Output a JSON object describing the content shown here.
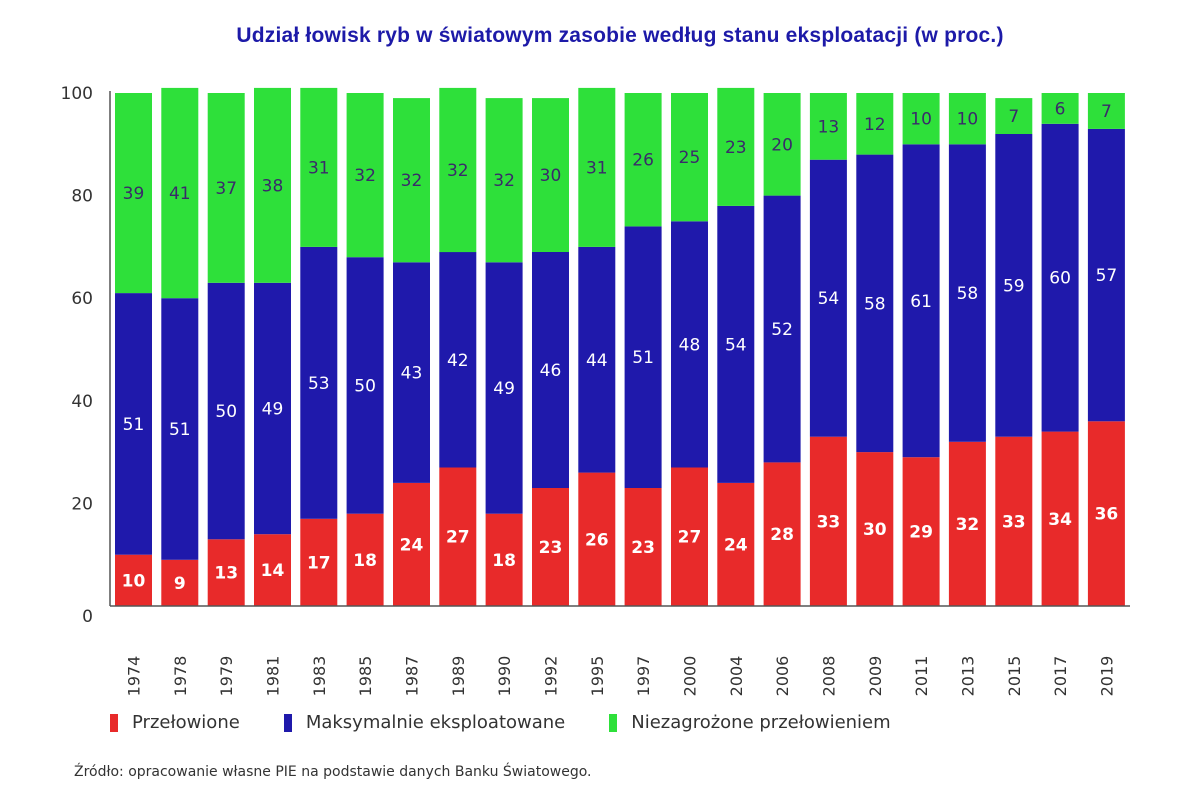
{
  "chart_data": {
    "type": "bar",
    "stacked": true,
    "title": "Udział łowisk ryb w światowym zasobie według stanu eksploatacji (w proc.)",
    "xlabel": "",
    "ylabel": "",
    "ylim": [
      0,
      100
    ],
    "yticks": [
      "0",
      "20",
      "40",
      "60",
      "80",
      "100"
    ],
    "grid": false,
    "legend_position": "bottom",
    "categories": [
      "1974",
      "1978",
      "1979",
      "1981",
      "1983",
      "1985",
      "1987",
      "1989",
      "1990",
      "1992",
      "1995",
      "1997",
      "2000",
      "2004",
      "2006",
      "2008",
      "2009",
      "2011",
      "2013",
      "2015",
      "2017",
      "2019"
    ],
    "series": [
      {
        "name": "Przełowione",
        "color": "#e82a2a",
        "label_color": "#ffffff",
        "values": [
          10,
          9,
          13,
          14,
          17,
          18,
          24,
          27,
          18,
          23,
          26,
          23,
          27,
          24,
          28,
          33,
          30,
          29,
          32,
          33,
          34,
          36
        ]
      },
      {
        "name": "Maksymalnie eksploatowane",
        "color": "#1f19ab",
        "label_color": "#ffffff",
        "values": [
          51,
          51,
          50,
          49,
          53,
          50,
          43,
          42,
          49,
          46,
          44,
          51,
          48,
          54,
          52,
          54,
          58,
          61,
          58,
          59,
          60,
          57
        ]
      },
      {
        "name": "Niezagrożone przełowieniem",
        "color": "#2ee03a",
        "label_color": "#3a2a6a",
        "values": [
          39,
          41,
          37,
          38,
          31,
          32,
          32,
          32,
          32,
          30,
          31,
          26,
          25,
          23,
          20,
          13,
          12,
          10,
          10,
          7,
          6,
          7
        ]
      }
    ]
  },
  "source": "Źródło: opracowanie własne PIE na podstawie danych Banku Światowego."
}
